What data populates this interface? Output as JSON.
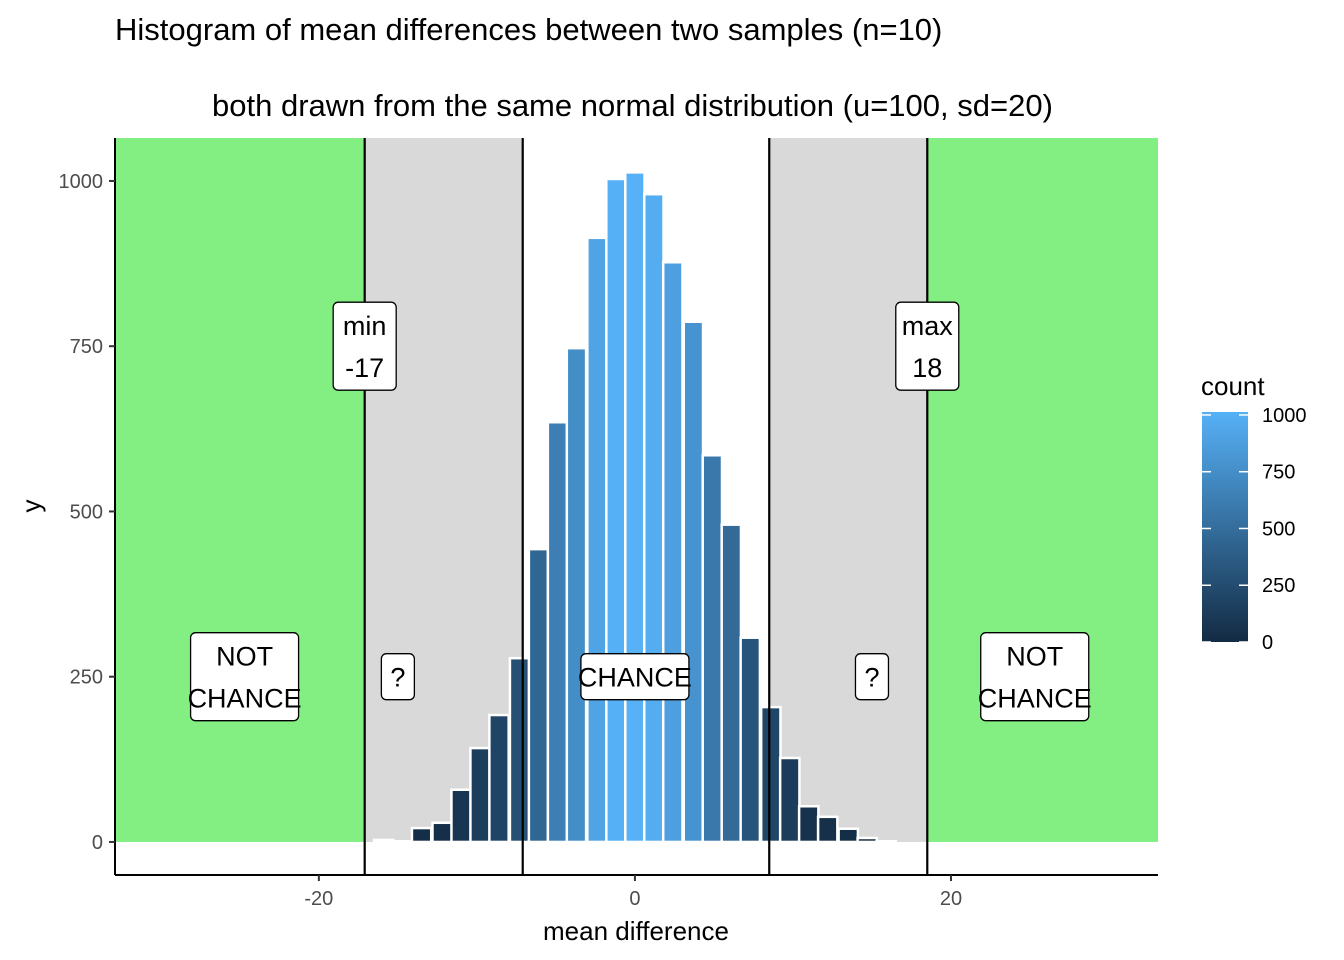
{
  "chart_data": {
    "type": "bar",
    "title": "Histogram of mean differences between two samples (n=10)",
    "subtitle": "both drawn from the same normal distribution (u=100, sd=20)",
    "xlabel": "mean difference",
    "ylabel": "y",
    "xlim": [
      -32.9,
      33.1
    ],
    "ylim": [
      -50,
      1065
    ],
    "x_ticks": [
      -20,
      0,
      20
    ],
    "x_tick_labels": [
      "-20",
      "0",
      "20"
    ],
    "y_ticks": [
      0,
      250,
      500,
      750,
      1000
    ],
    "y_tick_labels": [
      "0",
      "250",
      "500",
      "750",
      "1000"
    ],
    "grid": false,
    "bin_width": 1.22,
    "bin_centers": [
      -15.9,
      -14.7,
      -13.5,
      -12.2,
      -11.0,
      -9.8,
      -8.6,
      -7.3,
      -6.1,
      -4.9,
      -3.7,
      -2.4,
      -1.2,
      0,
      1.2,
      2.4,
      3.7,
      4.9,
      6.1,
      7.3,
      8.6,
      9.8,
      11.0,
      12.2,
      13.5,
      14.7,
      15.9
    ],
    "values": [
      3,
      1,
      21,
      29,
      79,
      142,
      192,
      278,
      443,
      635,
      747,
      914,
      1003,
      1013,
      980,
      877,
      787,
      585,
      480,
      309,
      204,
      127,
      54,
      38,
      20,
      6,
      1
    ],
    "regions": [
      {
        "name": "not-chance-left",
        "from": -32.9,
        "to": -17.1,
        "color": "#83EF82"
      },
      {
        "name": "uncertain-left",
        "from": -17.1,
        "to": -7.1,
        "color": "#D9D9D9"
      },
      {
        "name": "uncertain-right",
        "from": 8.5,
        "to": 18.5,
        "color": "#D9D9D9"
      },
      {
        "name": "not-chance-right",
        "from": 18.5,
        "to": 33.1,
        "color": "#83EF82"
      }
    ],
    "vlines": [
      -17.1,
      -7.1,
      8.5,
      18.5
    ],
    "annotations": [
      {
        "lines": [
          "min",
          "-17"
        ],
        "x": -17.1,
        "y": 750
      },
      {
        "lines": [
          "max",
          "18"
        ],
        "x": 18.5,
        "y": 750
      },
      {
        "lines": [
          "NOT",
          "CHANCE"
        ],
        "x": -24.7,
        "y": 250
      },
      {
        "lines": [
          "?"
        ],
        "x": -15,
        "y": 250
      },
      {
        "lines": [
          "CHANCE"
        ],
        "x": 0,
        "y": 250
      },
      {
        "lines": [
          "?"
        ],
        "x": 15,
        "y": 250
      },
      {
        "lines": [
          "NOT",
          "CHANCE"
        ],
        "x": 25.3,
        "y": 250
      }
    ],
    "legend": {
      "title": "count",
      "position": "right",
      "ticks": [
        0,
        250,
        500,
        750,
        1000
      ],
      "tick_labels": [
        "0",
        "250",
        "500",
        "750",
        "1000"
      ],
      "low_color": "#132B43",
      "high_color": "#56B1F7",
      "max": 1013
    }
  }
}
